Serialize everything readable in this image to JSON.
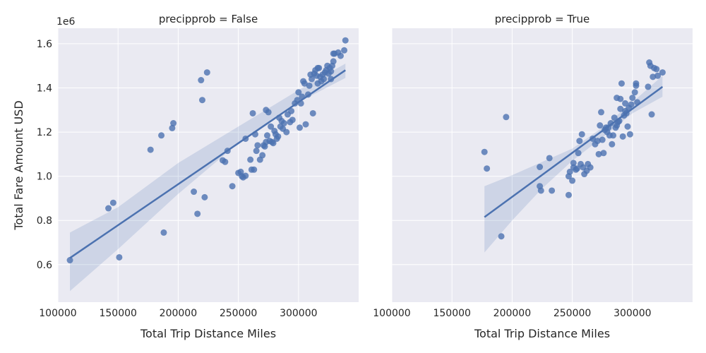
{
  "chart_data": [
    {
      "type": "scatter",
      "title": "precipprob = False",
      "xlabel": "Total Trip Distance Miles",
      "ylabel": "Total Fare Amount USD",
      "y_offset_label": "1e6",
      "xlim": [
        100000,
        350000
      ],
      "ylim": [
        430000,
        1670000
      ],
      "x_ticks": [
        100000,
        150000,
        200000,
        250000,
        300000
      ],
      "y_ticks": [
        600000,
        800000,
        1000000,
        1200000,
        1400000,
        1600000
      ],
      "x_tick_labels": [
        "100000",
        "150000",
        "200000",
        "250000",
        "300000"
      ],
      "y_tick_labels": [
        "0.6",
        "0.8",
        "1.0",
        "1.2",
        "1.4",
        "1.6"
      ],
      "grid": true,
      "regression": {
        "x": [
          110000,
          339000
        ],
        "y": [
          630000,
          1480000
        ]
      },
      "ci_band": {
        "x": [
          110000,
          150000,
          200000,
          250000,
          300000,
          339000
        ],
        "lower": [
          480000,
          670000,
          920000,
          1150000,
          1335000,
          1445000
        ],
        "upper": [
          745000,
          860000,
          1060000,
          1225000,
          1390000,
          1510000
        ]
      },
      "points": [
        [
          110000,
          620000
        ],
        [
          142000,
          855000
        ],
        [
          146000,
          880000
        ],
        [
          151000,
          633000
        ],
        [
          177000,
          1120000
        ],
        [
          186000,
          1185000
        ],
        [
          188000,
          745000
        ],
        [
          195000,
          1218000
        ],
        [
          196000,
          1240000
        ],
        [
          213000,
          930000
        ],
        [
          216000,
          830000
        ],
        [
          219000,
          1435000
        ],
        [
          220000,
          1345000
        ],
        [
          222000,
          905000
        ],
        [
          224000,
          1470000
        ],
        [
          237000,
          1072000
        ],
        [
          239000,
          1065000
        ],
        [
          241000,
          1115000
        ],
        [
          245000,
          955000
        ],
        [
          250000,
          1015000
        ],
        [
          252000,
          1020000
        ],
        [
          253000,
          1000000
        ],
        [
          254000,
          995000
        ],
        [
          256000,
          1002000
        ],
        [
          256000,
          1170000
        ],
        [
          260000,
          1075000
        ],
        [
          261000,
          1030000
        ],
        [
          262000,
          1285000
        ],
        [
          263000,
          1030000
        ],
        [
          264000,
          1190000
        ],
        [
          265000,
          1115000
        ],
        [
          266000,
          1140000
        ],
        [
          268000,
          1075000
        ],
        [
          270000,
          1095000
        ],
        [
          271000,
          1140000
        ],
        [
          272000,
          1135000
        ],
        [
          273000,
          1300000
        ],
        [
          273000,
          1155000
        ],
        [
          274000,
          1185000
        ],
        [
          275000,
          1290000
        ],
        [
          276000,
          1160000
        ],
        [
          277000,
          1225000
        ],
        [
          278000,
          1155000
        ],
        [
          279000,
          1150000
        ],
        [
          280000,
          1205000
        ],
        [
          281000,
          1190000
        ],
        [
          282000,
          1170000
        ],
        [
          283000,
          1180000
        ],
        [
          284000,
          1265000
        ],
        [
          285000,
          1225000
        ],
        [
          286000,
          1250000
        ],
        [
          287000,
          1215000
        ],
        [
          288000,
          1240000
        ],
        [
          290000,
          1200000
        ],
        [
          291000,
          1280000
        ],
        [
          293000,
          1245000
        ],
        [
          294000,
          1295000
        ],
        [
          295000,
          1255000
        ],
        [
          297000,
          1330000
        ],
        [
          299000,
          1345000
        ],
        [
          300000,
          1380000
        ],
        [
          301000,
          1220000
        ],
        [
          302000,
          1330000
        ],
        [
          303000,
          1360000
        ],
        [
          304000,
          1430000
        ],
        [
          305000,
          1420000
        ],
        [
          306000,
          1235000
        ],
        [
          308000,
          1370000
        ],
        [
          309000,
          1410000
        ],
        [
          310000,
          1460000
        ],
        [
          311000,
          1440000
        ],
        [
          312000,
          1285000
        ],
        [
          313000,
          1465000
        ],
        [
          314000,
          1480000
        ],
        [
          315000,
          1455000
        ],
        [
          316000,
          1490000
        ],
        [
          316000,
          1420000
        ],
        [
          317000,
          1490000
        ],
        [
          318000,
          1450000
        ],
        [
          319000,
          1430000
        ],
        [
          320000,
          1460000
        ],
        [
          321000,
          1440000
        ],
        [
          322000,
          1470000
        ],
        [
          323000,
          1480000
        ],
        [
          324000,
          1500000
        ],
        [
          325000,
          1465000
        ],
        [
          326000,
          1490000
        ],
        [
          327000,
          1475000
        ],
        [
          327000,
          1440000
        ],
        [
          328000,
          1500000
        ],
        [
          329000,
          1520000
        ],
        [
          329000,
          1555000
        ],
        [
          330000,
          1555000
        ],
        [
          333000,
          1560000
        ],
        [
          335000,
          1545000
        ],
        [
          338000,
          1570000
        ],
        [
          339000,
          1615000
        ]
      ]
    },
    {
      "type": "scatter",
      "title": "precipprob = True",
      "xlabel": "Total Trip Distance Miles",
      "ylabel": "",
      "xlim": [
        100000,
        350000
      ],
      "ylim": [
        430000,
        1670000
      ],
      "x_ticks": [
        100000,
        150000,
        200000,
        250000,
        300000
      ],
      "y_ticks": [
        600000,
        800000,
        1000000,
        1200000,
        1400000,
        1600000
      ],
      "x_tick_labels": [
        "100000",
        "150000",
        "200000",
        "250000",
        "300000"
      ],
      "grid": true,
      "regression": {
        "x": [
          177000,
          325000
        ],
        "y": [
          815000,
          1405000
        ]
      },
      "ci_band": {
        "x": [
          177000,
          200000,
          225000,
          250000,
          275000,
          300000,
          325000
        ],
        "lower": [
          655000,
          800000,
          945000,
          1070000,
          1175000,
          1285000,
          1360000
        ],
        "upper": [
          955000,
          1005000,
          1065000,
          1125000,
          1220000,
          1335000,
          1455000
        ]
      },
      "points": [
        [
          177000,
          1110000
        ],
        [
          179000,
          1035000
        ],
        [
          191000,
          728000
        ],
        [
          195000,
          1268000
        ],
        [
          223000,
          1042000
        ],
        [
          223000,
          955000
        ],
        [
          224000,
          935000
        ],
        [
          231000,
          1082000
        ],
        [
          233000,
          935000
        ],
        [
          247000,
          915000
        ],
        [
          247000,
          1000000
        ],
        [
          248000,
          1020000
        ],
        [
          250000,
          980000
        ],
        [
          251000,
          1040000
        ],
        [
          251000,
          1060000
        ],
        [
          253000,
          1030000
        ],
        [
          254000,
          1035000
        ],
        [
          255000,
          1105000
        ],
        [
          256000,
          1160000
        ],
        [
          257000,
          1055000
        ],
        [
          258000,
          1190000
        ],
        [
          259000,
          1040000
        ],
        [
          260000,
          1010000
        ],
        [
          262000,
          1025000
        ],
        [
          263000,
          1055000
        ],
        [
          265000,
          1040000
        ],
        [
          267000,
          1170000
        ],
        [
          269000,
          1145000
        ],
        [
          271000,
          1160000
        ],
        [
          272000,
          1100000
        ],
        [
          273000,
          1230000
        ],
        [
          274000,
          1290000
        ],
        [
          275000,
          1165000
        ],
        [
          276000,
          1105000
        ],
        [
          277000,
          1210000
        ],
        [
          278000,
          1220000
        ],
        [
          279000,
          1200000
        ],
        [
          280000,
          1220000
        ],
        [
          281000,
          1185000
        ],
        [
          282000,
          1240000
        ],
        [
          283000,
          1145000
        ],
        [
          284000,
          1185000
        ],
        [
          285000,
          1265000
        ],
        [
          286000,
          1220000
        ],
        [
          287000,
          1355000
        ],
        [
          287000,
          1230000
        ],
        [
          288000,
          1245000
        ],
        [
          289000,
          1250000
        ],
        [
          290000,
          1350000
        ],
        [
          290000,
          1305000
        ],
        [
          291000,
          1420000
        ],
        [
          292000,
          1180000
        ],
        [
          293000,
          1275000
        ],
        [
          294000,
          1295000
        ],
        [
          294000,
          1330000
        ],
        [
          295000,
          1285000
        ],
        [
          296000,
          1225000
        ],
        [
          297000,
          1310000
        ],
        [
          298000,
          1190000
        ],
        [
          299000,
          1325000
        ],
        [
          300000,
          1355000
        ],
        [
          302000,
          1380000
        ],
        [
          303000,
          1410000
        ],
        [
          303000,
          1420000
        ],
        [
          304000,
          1335000
        ],
        [
          313000,
          1405000
        ],
        [
          314000,
          1515000
        ],
        [
          315000,
          1500000
        ],
        [
          316000,
          1280000
        ],
        [
          317000,
          1450000
        ],
        [
          318000,
          1490000
        ],
        [
          320000,
          1485000
        ],
        [
          321000,
          1455000
        ],
        [
          325000,
          1470000
        ]
      ]
    }
  ]
}
